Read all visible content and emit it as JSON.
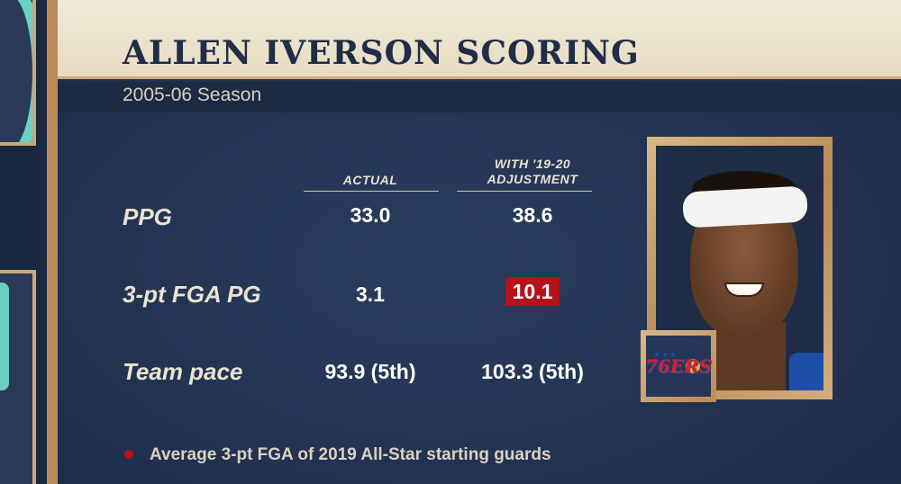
{
  "title": "ALLEN IVERSON SCORING",
  "subtitle": "2005-06 Season",
  "columns": {
    "actual": "ACTUAL",
    "adjusted_line1": "WITH '19-20",
    "adjusted_line2": "ADJUSTMENT"
  },
  "rows": [
    {
      "label": "PPG",
      "actual": "33.0",
      "adjusted": "38.6"
    },
    {
      "label": "3-pt FGA PG",
      "actual": "3.1",
      "adjusted": "10.1"
    },
    {
      "label": "Team pace",
      "actual": "93.9 (5th)",
      "adjusted": "103.3 (5th)"
    }
  ],
  "footnote": "Average 3-pt FGA of 2019 All-Star starting guards",
  "logo_text": "76ERS",
  "colors": {
    "highlight": "#b5121b",
    "title": "#1f2d47",
    "board": "#223251",
    "wood": "#c9a978"
  }
}
